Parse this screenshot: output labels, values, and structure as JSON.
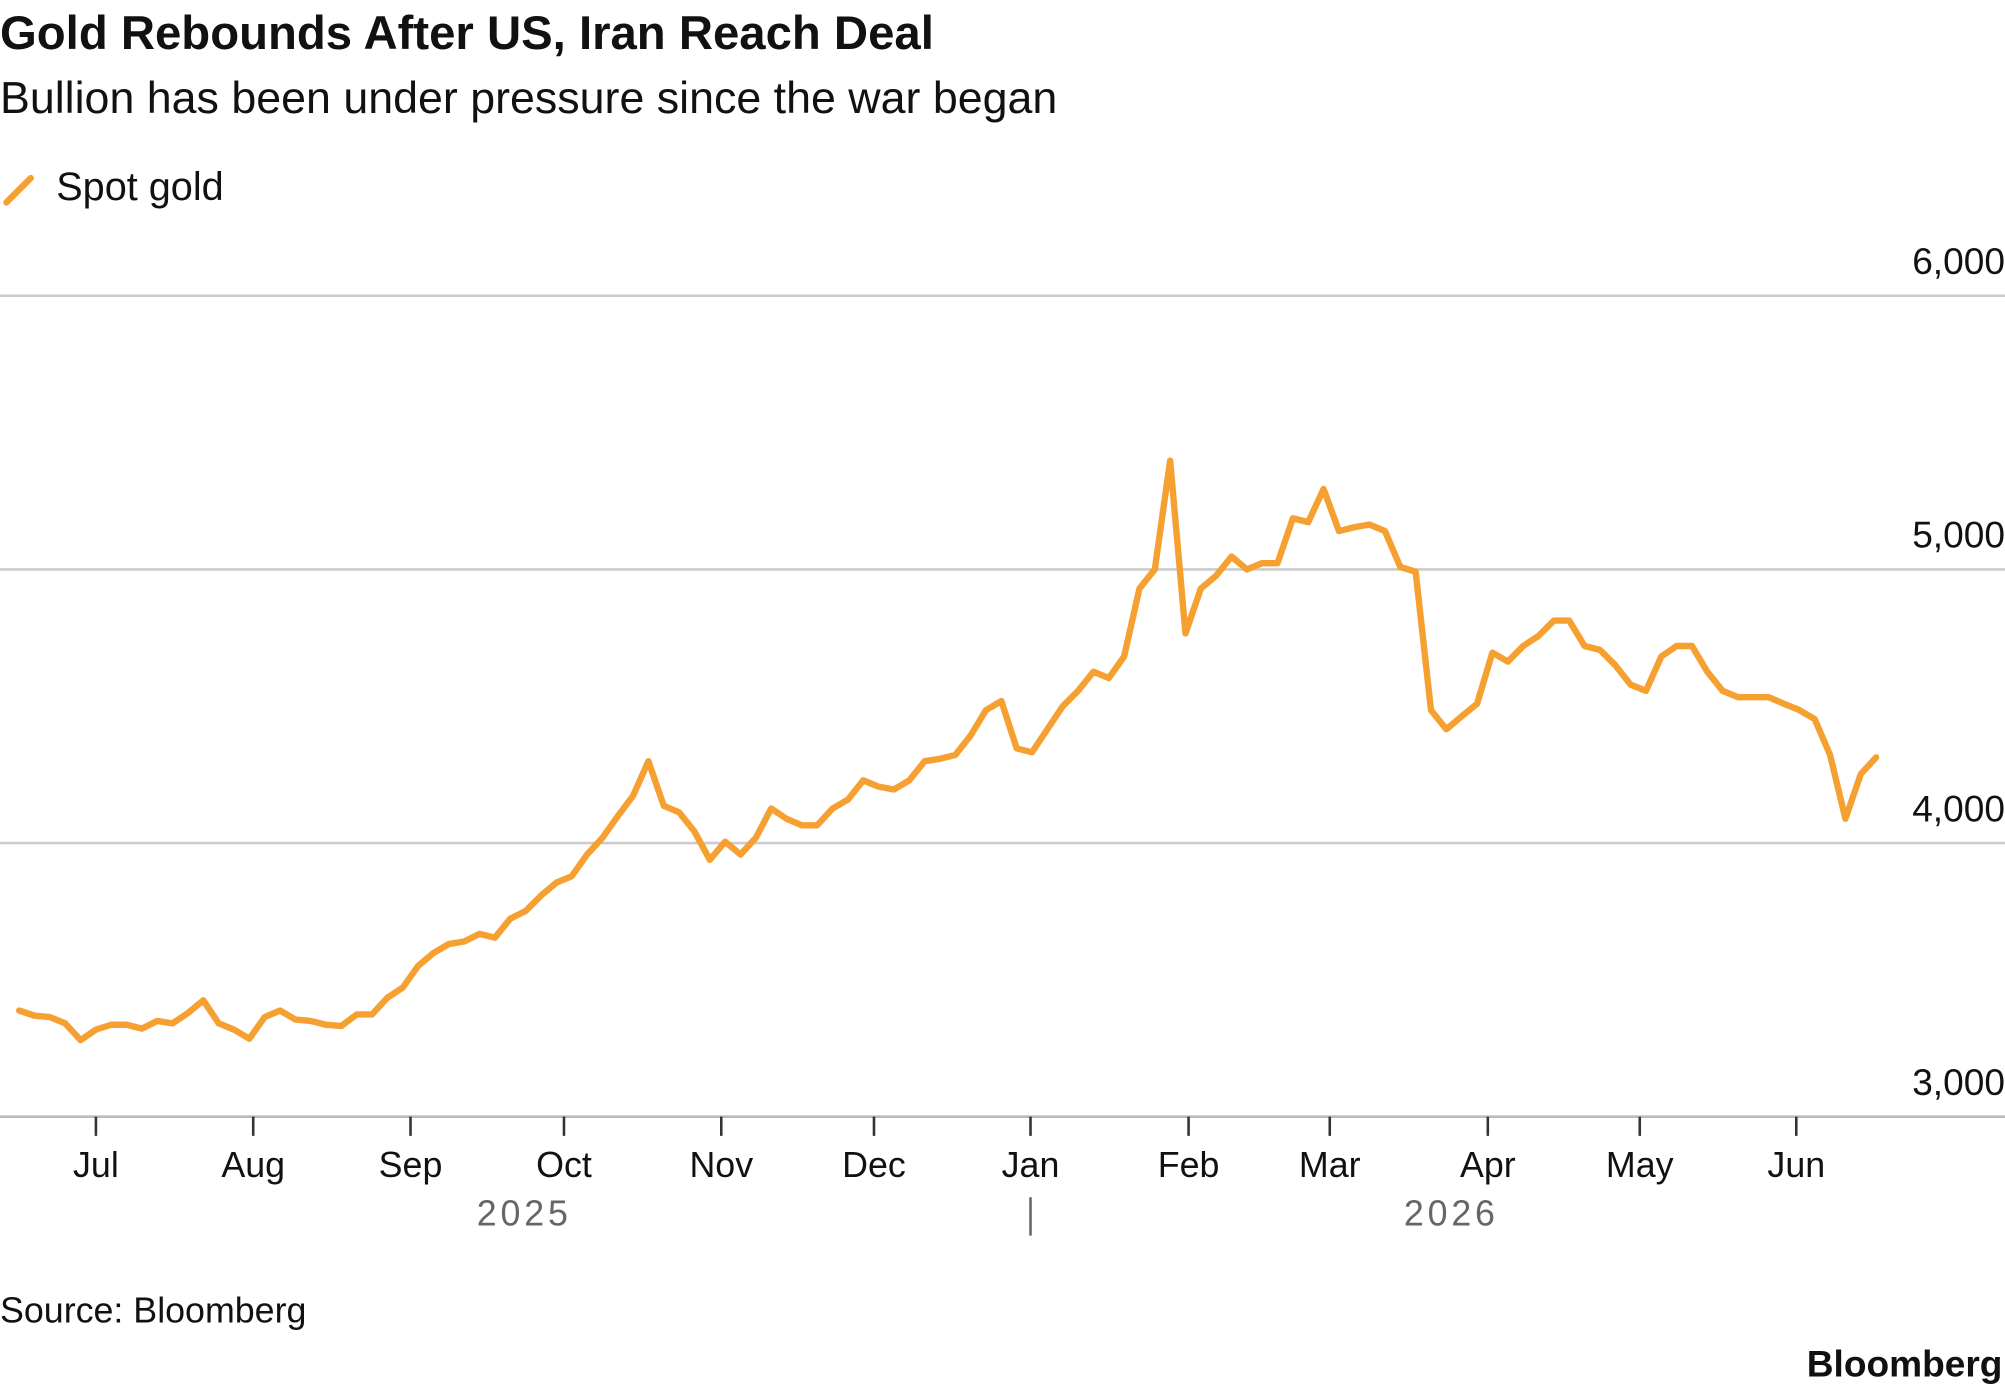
{
  "chart_data": {
    "type": "line",
    "title": "Gold Rebounds After US, Iran Reach Deal",
    "subtitle": "Bullion has been under pressure since the war began",
    "source": "Source: Bloomberg",
    "logo": "Bloomberg",
    "series": [
      {
        "name": "Spot gold",
        "color": "#f5a031",
        "values": [
          3388,
          3369,
          3364,
          3341,
          3280,
          3318,
          3336,
          3336,
          3322,
          3350,
          3341,
          3379,
          3425,
          3341,
          3318,
          3285,
          3364,
          3388,
          3355,
          3350,
          3336,
          3332,
          3374,
          3374,
          3435,
          3472,
          3551,
          3598,
          3631,
          3640,
          3668,
          3654,
          3724,
          3752,
          3808,
          3855,
          3879,
          3958,
          4019,
          4098,
          4173,
          4299,
          4136,
          4112,
          4042,
          3939,
          4005,
          3958,
          4019,
          4126,
          4089,
          4065,
          4065,
          4126,
          4159,
          4229,
          4206,
          4196,
          4229,
          4299,
          4308,
          4322,
          4393,
          4486,
          4519,
          4346,
          4332,
          4416,
          4500,
          4556,
          4626,
          4603,
          4682,
          4930,
          5000,
          5397,
          4766,
          4930,
          4977,
          5047,
          5000,
          5023,
          5023,
          5187,
          5173,
          5294,
          5140,
          5154,
          5164,
          5140,
          5009,
          4991,
          4486,
          4416,
          4463,
          4509,
          4696,
          4663,
          4720,
          4757,
          4813,
          4813,
          4720,
          4706,
          4650,
          4579,
          4556,
          4682,
          4720,
          4720,
          4626,
          4556,
          4533,
          4533,
          4533,
          4509,
          4486,
          4453,
          4322,
          4089,
          4252,
          4313
        ]
      }
    ],
    "xlim": [
      -1.25,
      129.4
    ],
    "xticks": [
      {
        "value": 5,
        "label": "Jul"
      },
      {
        "value": 15.25,
        "label": "Aug"
      },
      {
        "value": 25.5,
        "label": "Sep"
      },
      {
        "value": 35.5,
        "label": "Oct"
      },
      {
        "value": 45.75,
        "label": "Nov"
      },
      {
        "value": 55.7,
        "label": "Dec"
      },
      {
        "value": 65.9,
        "label": "Jan"
      },
      {
        "value": 76.2,
        "label": "Feb"
      },
      {
        "value": 85.4,
        "label": "Mar"
      },
      {
        "value": 95.7,
        "label": "Apr"
      },
      {
        "value": 105.6,
        "label": "May"
      },
      {
        "value": 115.8,
        "label": "Jun"
      }
    ],
    "year_labels": [
      "2025",
      "2026"
    ],
    "ylim": [
      3000,
      6000
    ],
    "yticks": [
      {
        "value": 3000,
        "label": "3,000"
      },
      {
        "value": 4000,
        "label": "4,000"
      },
      {
        "value": 5000,
        "label": "5,000"
      },
      {
        "value": 6000,
        "label": "6,000"
      }
    ],
    "grid": true
  }
}
